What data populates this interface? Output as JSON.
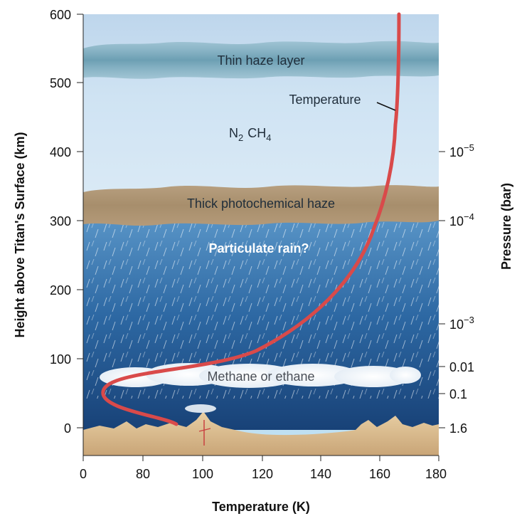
{
  "axes": {
    "left_label": "Height above Titan's Surface (km)",
    "right_label": "Pressure (bar)",
    "bottom_label": "Temperature (K)",
    "height_ticks": [
      "600",
      "500",
      "400",
      "300",
      "200",
      "100",
      "0"
    ],
    "temp_ticks": [
      "0",
      "80",
      "100",
      "120",
      "140",
      "160",
      "180"
    ],
    "pressure_ticks": [
      {
        "base": "10",
        "exp": "−5"
      },
      {
        "base": "10",
        "exp": "−4"
      },
      {
        "base": "10",
        "exp": "−3"
      },
      {
        "base": "0.01",
        "exp": ""
      },
      {
        "base": "0.1",
        "exp": ""
      },
      {
        "base": "1.6",
        "exp": ""
      }
    ]
  },
  "labels": {
    "thin_haze": "Thin haze layer",
    "temperature": "Temperature",
    "gas_n": "N",
    "gas_n_sub": "2",
    "gas_ch": "CH",
    "gas_ch_sub": "4",
    "thick_haze": "Thick photochemical haze",
    "rain": "Particulate rain?",
    "clouds": "Methane or ethane"
  },
  "colors": {
    "temperature_curve": "#d94a4a",
    "sky_top": "#c5dcef",
    "ocean_bottom": "#143a6e",
    "ground": "#dcb98a"
  }
}
